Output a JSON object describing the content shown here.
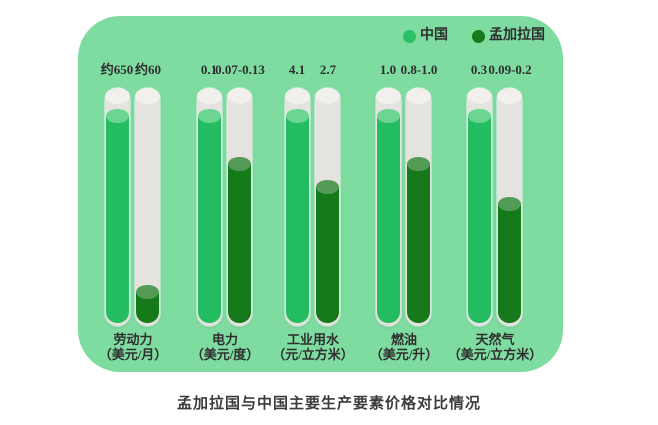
{
  "title": "孟加拉国与中国主要生产要素价格对比情况",
  "legend": {
    "items": [
      {
        "label": "中国",
        "color": "#2bbf66"
      },
      {
        "label": "孟加拉国",
        "color": "#16791a"
      }
    ]
  },
  "colors": {
    "page_bg": "#ffffff",
    "panel_bg": "#7fdca1",
    "tube": "#e4e3df",
    "tube_cap": "#f1f0ec",
    "china_fill": "#25bd61",
    "china_cap": "#6bd593",
    "bangladesh_fill": "#16791a",
    "bangladesh_cap": "#539a57",
    "text": "#2e2e2e",
    "title_text": "#3c3c3c"
  },
  "chart_data": {
    "type": "bar",
    "title": "孟加拉国与中国主要生产要素价格对比情况",
    "legend": [
      "中国",
      "孟加拉国"
    ],
    "legend_position": "top-right",
    "categories": [
      {
        "name": "劳动力",
        "unit": "（美元/月）"
      },
      {
        "name": "电力",
        "unit": "（美元/度）"
      },
      {
        "name": "工业用水",
        "unit": "（元/立方米）"
      },
      {
        "name": "燃油",
        "unit": "（美元/升）"
      },
      {
        "name": "天然气",
        "unit": "（美元/立方米）"
      }
    ],
    "series": [
      {
        "name": "中国",
        "color": "#25bd61",
        "values": [
          "约650",
          "0.1",
          "4.1",
          "1.0",
          "0.3"
        ],
        "fill_percent": [
          87,
          87,
          87,
          87,
          87
        ]
      },
      {
        "name": "孟加拉国",
        "color": "#16791a",
        "values": [
          "约60",
          "0.07-0.13",
          "2.7",
          "0.8-1.0",
          "0.09-0.2"
        ],
        "fill_percent": [
          13,
          67,
          57,
          67,
          50
        ]
      }
    ]
  }
}
